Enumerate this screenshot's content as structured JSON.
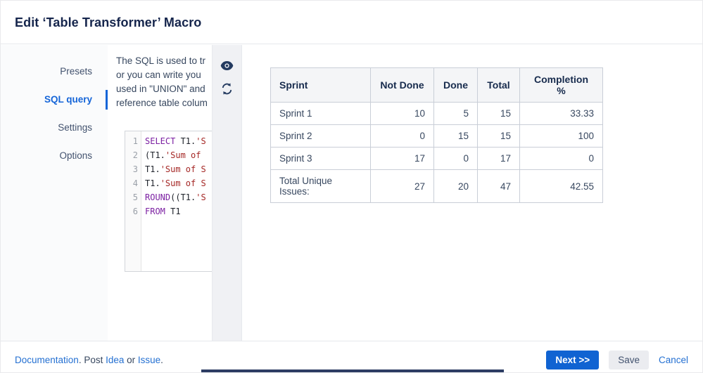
{
  "header": {
    "title": "Edit ‘Table Transformer’ Macro"
  },
  "sidebar": {
    "items": [
      {
        "label": "Presets",
        "active": false
      },
      {
        "label": "SQL query",
        "active": true
      },
      {
        "label": "Settings",
        "active": false
      },
      {
        "label": "Options",
        "active": false
      }
    ]
  },
  "sql_panel": {
    "description_lines": [
      "The SQL is used to tr",
      "or you can write you",
      "used in \"UNION\" and",
      "reference table colum"
    ],
    "editor_lines": [
      {
        "num": "1",
        "tokens": [
          {
            "t": "kw",
            "v": "SELECT"
          },
          {
            "t": "p",
            "v": " T1."
          },
          {
            "t": "str",
            "v": "'S"
          }
        ]
      },
      {
        "num": "2",
        "tokens": [
          {
            "t": "p",
            "v": "(T1."
          },
          {
            "t": "str",
            "v": "'Sum of "
          }
        ]
      },
      {
        "num": "3",
        "tokens": [
          {
            "t": "p",
            "v": "T1."
          },
          {
            "t": "str",
            "v": "'Sum of S"
          }
        ]
      },
      {
        "num": "4",
        "tokens": [
          {
            "t": "p",
            "v": "T1."
          },
          {
            "t": "str",
            "v": "'Sum of S"
          }
        ]
      },
      {
        "num": "5",
        "tokens": [
          {
            "t": "kw",
            "v": "ROUND"
          },
          {
            "t": "p",
            "v": "((T1."
          },
          {
            "t": "str",
            "v": "'S"
          }
        ]
      },
      {
        "num": "6",
        "tokens": [
          {
            "t": "kw",
            "v": "FROM"
          },
          {
            "t": "p",
            "v": " T1"
          }
        ]
      }
    ]
  },
  "toolbar_icons": [
    {
      "name": "eye-icon"
    },
    {
      "name": "refresh-icon"
    }
  ],
  "preview_table": {
    "headers": [
      "Sprint",
      "Not Done",
      "Done",
      "Total",
      "Completion %"
    ],
    "rows": [
      [
        "Sprint 1",
        "10",
        "5",
        "15",
        "33.33"
      ],
      [
        "Sprint 2",
        "0",
        "15",
        "15",
        "100"
      ],
      [
        "Sprint 3",
        "17",
        "0",
        "17",
        "0"
      ],
      [
        "Total Unique Issues:",
        "27",
        "20",
        "47",
        "42.55"
      ]
    ]
  },
  "footer": {
    "segments": [
      {
        "text": "Documentation",
        "link": true
      },
      {
        "text": ". ",
        "link": false
      },
      {
        "text": "Post ",
        "link": false
      },
      {
        "text": "Idea",
        "link": true
      },
      {
        "text": " or ",
        "link": false
      },
      {
        "text": "Issue",
        "link": true
      },
      {
        "text": ".",
        "link": false
      }
    ],
    "next_label": "Next >>",
    "save_label": "Save",
    "cancel_label": "Cancel"
  },
  "colors": {
    "accent_blue": "#1063d2",
    "active_tab_blue": "#1565d8",
    "link_blue": "#2470d2",
    "title_navy": "#15254c",
    "icon_navy": "#243b60",
    "keyword_purple": "#7b1fa2",
    "string_red": "#a52826",
    "table_header_bg": "#f4f5f7",
    "table_border": "#c9ced7",
    "panel_gray": "#f0f1f4",
    "sidebar_gray": "#fafbfc"
  }
}
